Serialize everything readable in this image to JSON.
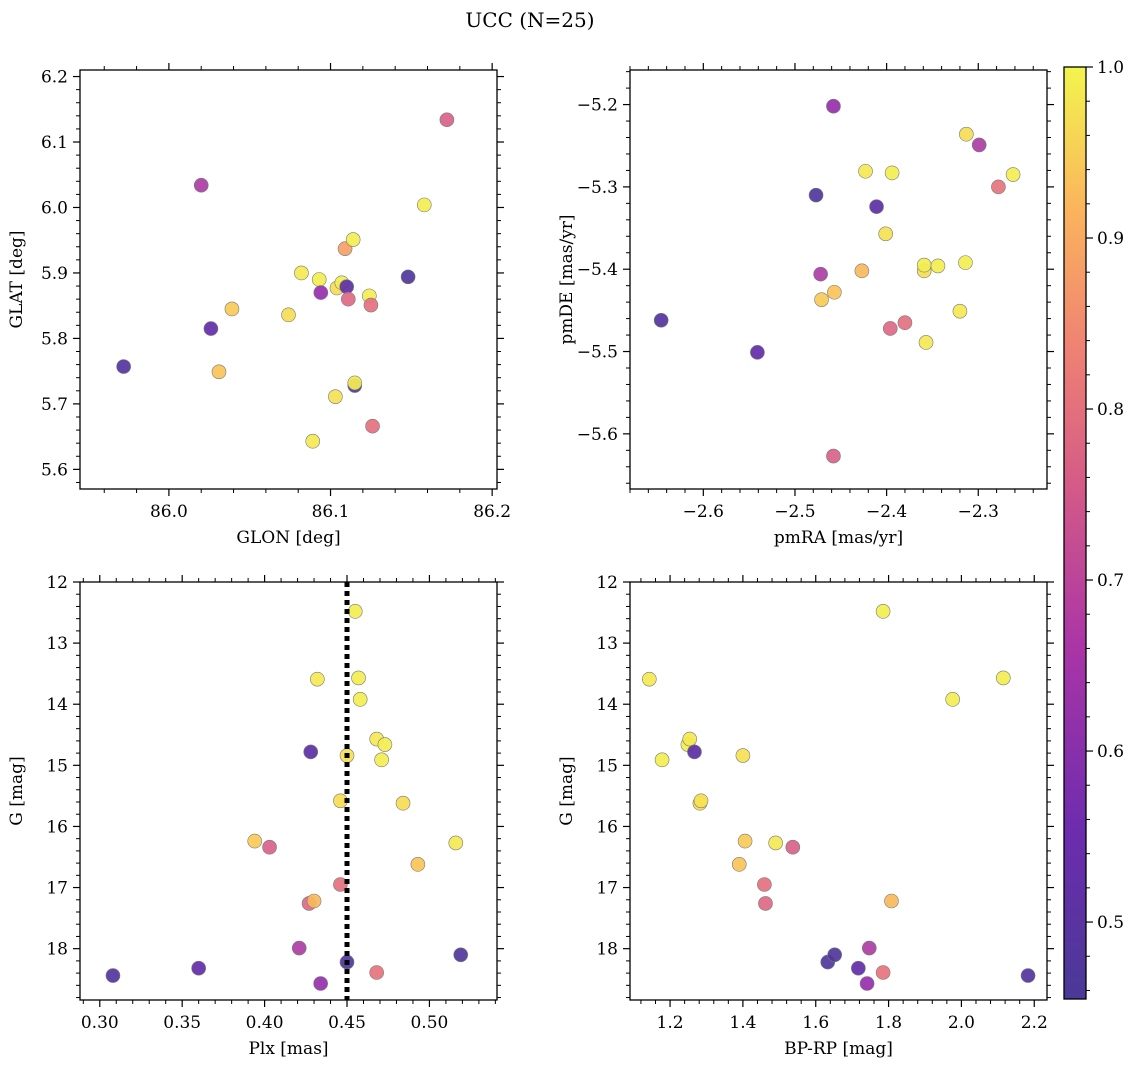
{
  "figure": {
    "title": "UCC (N=25)"
  },
  "colorbar": {
    "range": [
      0.455,
      1.0
    ],
    "colormap": "plasma",
    "ticks": [
      0.5,
      0.6,
      0.7,
      0.8,
      0.9,
      1.0
    ],
    "tick_labels": [
      "0.5",
      "0.6",
      "0.7",
      "0.8",
      "0.9",
      "1.0"
    ]
  },
  "chart_data": [
    {
      "type": "scatter",
      "id": "glon-glat",
      "xlabel": "GLON [deg]",
      "ylabel": "GLAT [deg]",
      "xlim": [
        85.945,
        86.203
      ],
      "ylim": [
        5.57,
        6.21
      ],
      "xticks": [
        86.0,
        86.1,
        86.2
      ],
      "xtick_labels": [
        "86.0",
        "86.1",
        "86.2"
      ],
      "yticks": [
        5.6,
        5.7,
        5.8,
        5.9,
        6.0,
        6.1,
        6.2
      ],
      "ytick_labels": [
        "5.6",
        "5.7",
        "5.8",
        "5.9",
        "6.0",
        "6.1",
        "6.2"
      ],
      "points": [
        {
          "x": 85.972,
          "y": 5.757,
          "c": 0.48
        },
        {
          "x": 86.02,
          "y": 6.034,
          "c": 0.63
        },
        {
          "x": 86.026,
          "y": 5.815,
          "c": 0.52
        },
        {
          "x": 86.031,
          "y": 5.749,
          "c": 0.92
        },
        {
          "x": 86.039,
          "y": 5.845,
          "c": 0.93
        },
        {
          "x": 86.074,
          "y": 5.836,
          "c": 0.96
        },
        {
          "x": 86.082,
          "y": 5.9,
          "c": 0.98
        },
        {
          "x": 86.089,
          "y": 5.643,
          "c": 0.98
        },
        {
          "x": 86.093,
          "y": 5.89,
          "c": 0.99
        },
        {
          "x": 86.094,
          "y": 5.87,
          "c": 0.6
        },
        {
          "x": 86.103,
          "y": 5.711,
          "c": 0.97
        },
        {
          "x": 86.104,
          "y": 5.877,
          "c": 0.96
        },
        {
          "x": 86.107,
          "y": 5.885,
          "c": 0.99
        },
        {
          "x": 86.109,
          "y": 5.937,
          "c": 0.86
        },
        {
          "x": 86.11,
          "y": 5.879,
          "c": 0.5
        },
        {
          "x": 86.111,
          "y": 5.86,
          "c": 0.74
        },
        {
          "x": 86.114,
          "y": 5.951,
          "c": 0.99
        },
        {
          "x": 86.115,
          "y": 5.728,
          "c": 0.46
        },
        {
          "x": 86.115,
          "y": 5.732,
          "c": 0.99
        },
        {
          "x": 86.124,
          "y": 5.865,
          "c": 0.99
        },
        {
          "x": 86.125,
          "y": 5.851,
          "c": 0.76
        },
        {
          "x": 86.126,
          "y": 5.666,
          "c": 0.76
        },
        {
          "x": 86.148,
          "y": 5.894,
          "c": 0.47
        },
        {
          "x": 86.158,
          "y": 6.004,
          "c": 0.99
        },
        {
          "x": 86.172,
          "y": 6.134,
          "c": 0.72
        }
      ]
    },
    {
      "type": "scatter",
      "id": "pmra-pmde",
      "xlabel": "pmRA [mas/yr]",
      "ylabel": "pmDE [mas/yr]",
      "xlim": [
        -2.68,
        -2.225
      ],
      "ylim": [
        -5.667,
        -5.158
      ],
      "xticks": [
        -2.6,
        -2.5,
        -2.4,
        -2.3
      ],
      "xtick_labels": [
        "−2.6",
        "−2.5",
        "−2.4",
        "−2.3"
      ],
      "yticks": [
        -5.6,
        -5.5,
        -5.4,
        -5.3,
        -5.2
      ],
      "ytick_labels": [
        "−5.6",
        "−5.5",
        "−5.4",
        "−5.3",
        "−5.2"
      ],
      "points": [
        {
          "x": -2.646,
          "y": -5.462,
          "c": 0.48
        },
        {
          "x": -2.541,
          "y": -5.501,
          "c": 0.52
        },
        {
          "x": -2.477,
          "y": -5.31,
          "c": 0.47
        },
        {
          "x": -2.472,
          "y": -5.406,
          "c": 0.63
        },
        {
          "x": -2.471,
          "y": -5.437,
          "c": 0.93
        },
        {
          "x": -2.458,
          "y": -5.202,
          "c": 0.6
        },
        {
          "x": -2.458,
          "y": -5.627,
          "c": 0.72
        },
        {
          "x": -2.457,
          "y": -5.428,
          "c": 0.92
        },
        {
          "x": -2.427,
          "y": -5.402,
          "c": 0.9
        },
        {
          "x": -2.423,
          "y": -5.281,
          "c": 0.98
        },
        {
          "x": -2.411,
          "y": -5.324,
          "c": 0.5
        },
        {
          "x": -2.401,
          "y": -5.357,
          "c": 0.97
        },
        {
          "x": -2.396,
          "y": -5.472,
          "c": 0.74
        },
        {
          "x": -2.394,
          "y": -5.283,
          "c": 0.99
        },
        {
          "x": -2.38,
          "y": -5.465,
          "c": 0.76
        },
        {
          "x": -2.359,
          "y": -5.402,
          "c": 0.96
        },
        {
          "x": -2.359,
          "y": -5.395,
          "c": 0.99
        },
        {
          "x": -2.357,
          "y": -5.489,
          "c": 0.98
        },
        {
          "x": -2.344,
          "y": -5.396,
          "c": 0.99
        },
        {
          "x": -2.32,
          "y": -5.451,
          "c": 0.98
        },
        {
          "x": -2.314,
          "y": -5.392,
          "c": 0.99
        },
        {
          "x": -2.313,
          "y": -5.236,
          "c": 0.96
        },
        {
          "x": -2.299,
          "y": -5.249,
          "c": 0.63
        },
        {
          "x": -2.278,
          "y": -5.3,
          "c": 0.77
        },
        {
          "x": -2.262,
          "y": -5.285,
          "c": 0.99
        }
      ]
    },
    {
      "type": "scatter",
      "id": "plx-g",
      "xlabel": "Plx [mas]",
      "ylabel": "G [mag]",
      "xlim": [
        0.288,
        0.541
      ],
      "ylim": [
        18.84,
        12.0
      ],
      "y_inverted": true,
      "vline": 0.45,
      "xticks": [
        0.3,
        0.35,
        0.4,
        0.45,
        0.5
      ],
      "xtick_labels": [
        "0.30",
        "0.35",
        "0.40",
        "0.45",
        "0.50"
      ],
      "yticks": [
        12,
        13,
        14,
        15,
        16,
        17,
        18
      ],
      "ytick_labels": [
        "12",
        "13",
        "14",
        "15",
        "16",
        "17",
        "18"
      ],
      "points": [
        {
          "x": 0.308,
          "y": 18.44,
          "c": 0.48
        },
        {
          "x": 0.36,
          "y": 18.32,
          "c": 0.52
        },
        {
          "x": 0.394,
          "y": 16.24,
          "c": 0.93
        },
        {
          "x": 0.403,
          "y": 16.34,
          "c": 0.72
        },
        {
          "x": 0.421,
          "y": 17.99,
          "c": 0.63
        },
        {
          "x": 0.427,
          "y": 17.26,
          "c": 0.74
        },
        {
          "x": 0.428,
          "y": 14.78,
          "c": 0.5
        },
        {
          "x": 0.43,
          "y": 17.22,
          "c": 0.9
        },
        {
          "x": 0.432,
          "y": 13.59,
          "c": 0.98
        },
        {
          "x": 0.434,
          "y": 18.57,
          "c": 0.6
        },
        {
          "x": 0.446,
          "y": 15.58,
          "c": 0.96
        },
        {
          "x": 0.446,
          "y": 16.95,
          "c": 0.76
        },
        {
          "x": 0.45,
          "y": 18.22,
          "c": 0.47
        },
        {
          "x": 0.45,
          "y": 14.84,
          "c": 0.97
        },
        {
          "x": 0.455,
          "y": 12.48,
          "c": 0.99
        },
        {
          "x": 0.457,
          "y": 13.57,
          "c": 0.99
        },
        {
          "x": 0.458,
          "y": 13.92,
          "c": 0.99
        },
        {
          "x": 0.468,
          "y": 14.57,
          "c": 0.98
        },
        {
          "x": 0.468,
          "y": 18.39,
          "c": 0.77
        },
        {
          "x": 0.471,
          "y": 14.91,
          "c": 0.99
        },
        {
          "x": 0.473,
          "y": 14.66,
          "c": 0.99
        },
        {
          "x": 0.484,
          "y": 15.62,
          "c": 0.96
        },
        {
          "x": 0.493,
          "y": 16.62,
          "c": 0.92
        },
        {
          "x": 0.516,
          "y": 16.27,
          "c": 0.98
        },
        {
          "x": 0.519,
          "y": 18.1,
          "c": 0.47
        }
      ]
    },
    {
      "type": "scatter",
      "id": "bprp-g",
      "xlabel": "BP-RP [mag]",
      "ylabel": "G [mag]",
      "xlim": [
        1.09,
        2.235
      ],
      "ylim": [
        18.84,
        12.0
      ],
      "y_inverted": true,
      "xticks": [
        1.2,
        1.4,
        1.6,
        1.8,
        2.0,
        2.2
      ],
      "xtick_labels": [
        "1.2",
        "1.4",
        "1.6",
        "1.8",
        "2.0",
        "2.2"
      ],
      "yticks": [
        12,
        13,
        14,
        15,
        16,
        17,
        18
      ],
      "ytick_labels": [
        "12",
        "13",
        "14",
        "15",
        "16",
        "17",
        "18"
      ],
      "points": [
        {
          "x": 1.143,
          "y": 13.59,
          "c": 0.98
        },
        {
          "x": 1.178,
          "y": 14.91,
          "c": 0.99
        },
        {
          "x": 1.249,
          "y": 14.66,
          "c": 0.99
        },
        {
          "x": 1.254,
          "y": 14.57,
          "c": 0.98
        },
        {
          "x": 1.267,
          "y": 14.78,
          "c": 0.5
        },
        {
          "x": 1.282,
          "y": 15.62,
          "c": 0.96
        },
        {
          "x": 1.285,
          "y": 15.58,
          "c": 0.97
        },
        {
          "x": 1.39,
          "y": 16.62,
          "c": 0.92
        },
        {
          "x": 1.4,
          "y": 14.84,
          "c": 0.97
        },
        {
          "x": 1.406,
          "y": 16.24,
          "c": 0.93
        },
        {
          "x": 1.459,
          "y": 16.95,
          "c": 0.76
        },
        {
          "x": 1.462,
          "y": 17.26,
          "c": 0.74
        },
        {
          "x": 1.49,
          "y": 16.27,
          "c": 0.98
        },
        {
          "x": 1.537,
          "y": 16.34,
          "c": 0.72
        },
        {
          "x": 1.633,
          "y": 18.22,
          "c": 0.47
        },
        {
          "x": 1.652,
          "y": 18.1,
          "c": 0.47
        },
        {
          "x": 1.717,
          "y": 18.32,
          "c": 0.52
        },
        {
          "x": 1.741,
          "y": 18.57,
          "c": 0.6
        },
        {
          "x": 1.747,
          "y": 17.99,
          "c": 0.63
        },
        {
          "x": 1.785,
          "y": 12.48,
          "c": 0.99
        },
        {
          "x": 1.785,
          "y": 18.39,
          "c": 0.77
        },
        {
          "x": 1.808,
          "y": 17.22,
          "c": 0.9
        },
        {
          "x": 1.976,
          "y": 13.92,
          "c": 0.99
        },
        {
          "x": 2.115,
          "y": 13.57,
          "c": 0.99
        },
        {
          "x": 2.183,
          "y": 18.44,
          "c": 0.48
        }
      ]
    }
  ]
}
